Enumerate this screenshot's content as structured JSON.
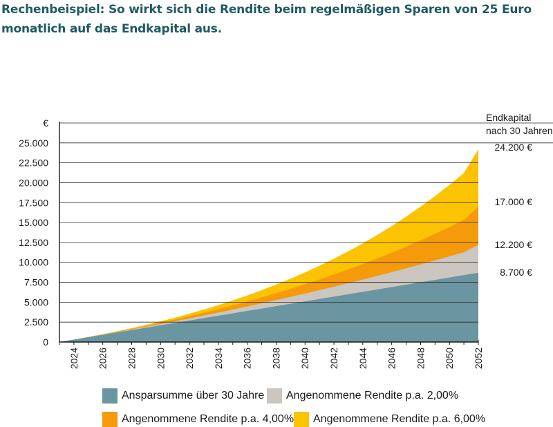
{
  "title": "Rechenbeispiel: So wirkt sich die Rendite beim regelmäßigen Sparen von 25 Euro monatlich auf das Endkapital aus.",
  "colors": {
    "ansparsumme": "#6a95a1",
    "rendite2": "#cbc6bf",
    "rendite4": "#f49a0b",
    "rendite6": "#fcc300",
    "title": "#1f5a63"
  },
  "chart_data": {
    "type": "area",
    "title": "Rechenbeispiel: So wirkt sich die Rendite beim regelmäßigen Sparen von 25 Euro monatlich auf das Endkapital aus.",
    "ylabel": "€",
    "end_label_header": [
      "Endkapital",
      "nach 30 Jahren"
    ],
    "ylim": [
      0,
      27500
    ],
    "yticks": [
      0,
      2500,
      5000,
      7500,
      10000,
      12500,
      15000,
      17500,
      20000,
      22500,
      25000
    ],
    "ytick_labels": [
      "0",
      "2.500",
      "5.000",
      "7.500",
      "10.000",
      "12.500",
      "15.000",
      "17.500",
      "20.000",
      "22.500",
      "25.000"
    ],
    "xlim": [
      2023,
      2052
    ],
    "xticks": [
      "2024",
      "2026",
      "2028",
      "2030",
      "2032",
      "2034",
      "2036",
      "2038",
      "2040",
      "2042",
      "2044",
      "2046",
      "2048",
      "2050",
      "2052"
    ],
    "x": [
      2023,
      2024,
      2025,
      2026,
      2027,
      2028,
      2029,
      2030,
      2031,
      2032,
      2033,
      2034,
      2035,
      2036,
      2037,
      2038,
      2039,
      2040,
      2041,
      2042,
      2043,
      2044,
      2045,
      2046,
      2047,
      2048,
      2049,
      2050,
      2051,
      2052
    ],
    "series": [
      {
        "name": "Ansparsumme über 30 Jahre",
        "key": "ansparsumme",
        "values": [
          0,
          300,
          600,
          900,
          1200,
          1500,
          1800,
          2100,
          2400,
          2700,
          3000,
          3300,
          3600,
          3900,
          4200,
          4500,
          4800,
          5100,
          5400,
          5700,
          6000,
          6300,
          6600,
          6900,
          7200,
          7500,
          7800,
          8100,
          8400,
          8700
        ]
      },
      {
        "name": "Angenommene Rendite p.a. 2,00%",
        "key": "rendite2",
        "values": [
          0,
          303,
          612,
          928,
          1250,
          1580,
          1915,
          2257,
          2607,
          2963,
          3326,
          3697,
          4075,
          4461,
          4855,
          5257,
          5667,
          6085,
          6512,
          6947,
          7391,
          7844,
          8306,
          8777,
          9258,
          9748,
          10249,
          10760,
          11281,
          12200
        ]
      },
      {
        "name": "Angenommene Rendite p.a. 4,00%",
        "key": "rendite4",
        "values": [
          0,
          306,
          625,
          956,
          1300,
          1659,
          2031,
          2419,
          2822,
          3241,
          3676,
          4130,
          4601,
          5091,
          5601,
          6131,
          6683,
          7257,
          7854,
          8475,
          9120,
          9792,
          10490,
          11216,
          11971,
          12757,
          13574,
          14424,
          15307,
          17000
        ]
      },
      {
        "name": "Angenommene Rendite p.a. 6,00%",
        "key": "rendite6",
        "values": [
          0,
          309,
          637,
          985,
          1353,
          1744,
          2158,
          2597,
          3063,
          3557,
          4080,
          4635,
          5223,
          5846,
          6507,
          7207,
          7949,
          8736,
          9570,
          10454,
          11391,
          12384,
          13437,
          14553,
          15736,
          16990,
          18319,
          19728,
          21221,
          24200
        ]
      }
    ],
    "end_labels": [
      "24.200 €",
      "17.000 €",
      "12.200 €",
      "8.700 €"
    ],
    "legend_placement": "bottom",
    "grid": true
  },
  "legend": [
    {
      "label": "Ansparsumme über 30 Jahre",
      "key": "ansparsumme"
    },
    {
      "label": "Angenommene Rendite p.a. 2,00%",
      "key": "rendite2"
    },
    {
      "label": "Angenommene Rendite p.a. 4,00%",
      "key": "rendite4"
    },
    {
      "label": "Angenommene Rendite p.a. 6,00%",
      "key": "rendite6"
    }
  ]
}
